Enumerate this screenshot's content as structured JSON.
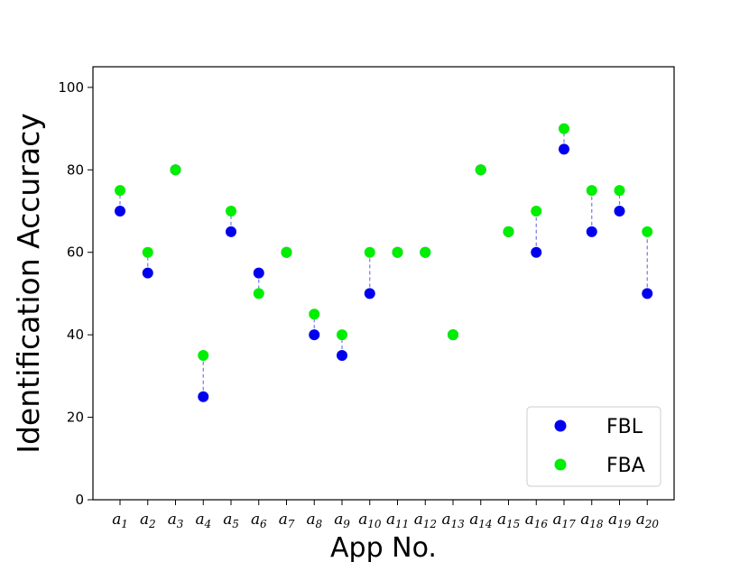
{
  "chart_data": {
    "type": "scatter",
    "xlabel": "App No.",
    "ylabel": "Identification Accuracy",
    "ylim": [
      0,
      105
    ],
    "yticks": [
      0,
      20,
      40,
      60,
      80,
      100
    ],
    "ytick_labels": [
      "0",
      "20",
      "40",
      "60",
      "80",
      "100"
    ],
    "categories": [
      {
        "base": "a",
        "sub": "1"
      },
      {
        "base": "a",
        "sub": "2"
      },
      {
        "base": "a",
        "sub": "3"
      },
      {
        "base": "a",
        "sub": "4"
      },
      {
        "base": "a",
        "sub": "5"
      },
      {
        "base": "a",
        "sub": "6"
      },
      {
        "base": "a",
        "sub": "7"
      },
      {
        "base": "a",
        "sub": "8"
      },
      {
        "base": "a",
        "sub": "9"
      },
      {
        "base": "a",
        "sub": "10"
      },
      {
        "base": "a",
        "sub": "11"
      },
      {
        "base": "a",
        "sub": "12"
      },
      {
        "base": "a",
        "sub": "13"
      },
      {
        "base": "a",
        "sub": "14"
      },
      {
        "base": "a",
        "sub": "15"
      },
      {
        "base": "a",
        "sub": "16"
      },
      {
        "base": "a",
        "sub": "17"
      },
      {
        "base": "a",
        "sub": "18"
      },
      {
        "base": "a",
        "sub": "19"
      },
      {
        "base": "a",
        "sub": "20"
      }
    ],
    "series": [
      {
        "name": "FBL",
        "color": "#0000ee",
        "values": [
          70,
          55,
          80,
          25,
          65,
          55,
          60,
          40,
          35,
          50,
          60,
          60,
          40,
          80,
          65,
          60,
          85,
          65,
          70,
          50
        ]
      },
      {
        "name": "FBA",
        "color": "#00ee00",
        "values": [
          75,
          60,
          80,
          35,
          70,
          50,
          60,
          45,
          40,
          60,
          60,
          60,
          40,
          80,
          65,
          70,
          90,
          75,
          75,
          65
        ]
      }
    ],
    "connector_color": "#7777ee",
    "grid": false,
    "legend_position": "bottom-right"
  }
}
